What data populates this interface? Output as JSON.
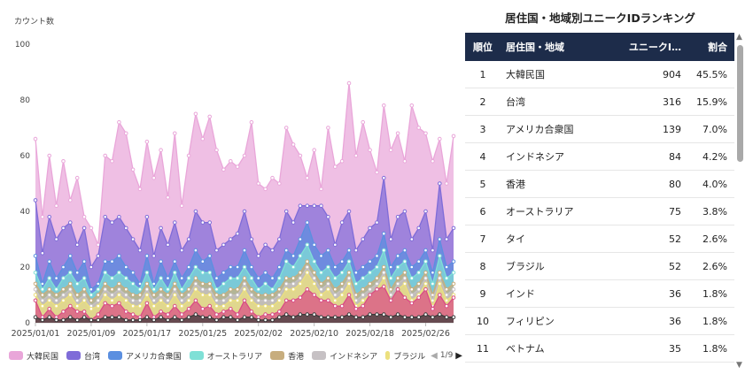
{
  "chart": {
    "y_axis_title": "カウント数",
    "legend_items": [
      {
        "label": "大韓民国",
        "color": "#e9a6d9"
      },
      {
        "label": "台湾",
        "color": "#7f6cd8"
      },
      {
        "label": "アメリカ合衆国",
        "color": "#5b8fe0"
      },
      {
        "label": "オーストラリア",
        "color": "#7fe0d6"
      },
      {
        "label": "香港",
        "color": "#c7ad7e"
      },
      {
        "label": "インドネシア",
        "color": "#c6c1c4"
      },
      {
        "label": "ブラジル",
        "color": "#ece07e"
      }
    ],
    "legend_page": "1/9"
  },
  "chart_data": {
    "type": "area",
    "stacked": false,
    "xlabel": "",
    "ylabel": "カウント数",
    "ylim": [
      0,
      100
    ],
    "yticks": [
      0,
      20,
      40,
      60,
      80,
      100
    ],
    "x_tick_labels": [
      "2025/01/01",
      "2025/01/09",
      "2025/01/17",
      "2025/01/25",
      "2025/02/02",
      "2025/02/10",
      "2025/02/18",
      "2025/02/26"
    ],
    "x_start": "2025-01-01",
    "x_end": "2025-02-28",
    "grid": false,
    "legend_position": "bottom",
    "series": [
      {
        "name": "大韓民国",
        "color": "#e9a6d9",
        "values": [
          66,
          38,
          60,
          42,
          58,
          44,
          52,
          38,
          34,
          28,
          60,
          58,
          72,
          68,
          55,
          48,
          65,
          52,
          62,
          45,
          68,
          42,
          60,
          75,
          66,
          74,
          62,
          55,
          58,
          56,
          60,
          72,
          50,
          48,
          52,
          50,
          70,
          64,
          60,
          52,
          62,
          48,
          70,
          56,
          58,
          86,
          60,
          72,
          62,
          54,
          78,
          62,
          68,
          58,
          78,
          70,
          68,
          58,
          66,
          50,
          67
        ]
      },
      {
        "name": "台湾",
        "color": "#7f6cd8",
        "values": [
          44,
          25,
          38,
          30,
          34,
          36,
          28,
          34,
          20,
          24,
          38,
          36,
          38,
          34,
          30,
          26,
          38,
          24,
          34,
          28,
          36,
          26,
          30,
          40,
          36,
          36,
          26,
          28,
          30,
          32,
          40,
          30,
          24,
          28,
          26,
          30,
          40,
          36,
          42,
          42,
          42,
          42,
          38,
          28,
          36,
          40,
          26,
          30,
          34,
          36,
          52,
          30,
          38,
          40,
          30,
          34,
          40,
          26,
          50,
          30,
          34
        ]
      },
      {
        "name": "アメリカ合衆国",
        "color": "#5b8fe0",
        "values": [
          24,
          14,
          22,
          16,
          20,
          24,
          18,
          22,
          12,
          14,
          22,
          22,
          24,
          20,
          18,
          14,
          24,
          14,
          22,
          16,
          22,
          16,
          20,
          26,
          22,
          24,
          16,
          18,
          20,
          20,
          26,
          20,
          16,
          18,
          16,
          20,
          26,
          24,
          30,
          36,
          28,
          24,
          26,
          20,
          22,
          26,
          18,
          20,
          22,
          24,
          32,
          20,
          24,
          26,
          20,
          22,
          26,
          18,
          30,
          20,
          22
        ]
      },
      {
        "name": "オーストラリア",
        "color": "#7fe0d6",
        "values": [
          18,
          12,
          16,
          12,
          16,
          18,
          14,
          16,
          10,
          12,
          18,
          16,
          18,
          16,
          14,
          12,
          18,
          12,
          16,
          12,
          18,
          12,
          16,
          20,
          18,
          18,
          12,
          14,
          16,
          16,
          20,
          16,
          12,
          14,
          12,
          16,
          22,
          20,
          24,
          28,
          22,
          18,
          20,
          16,
          18,
          22,
          14,
          16,
          18,
          20,
          26,
          16,
          20,
          22,
          16,
          18,
          22,
          14,
          24,
          16,
          18
        ]
      },
      {
        "name": "香港",
        "color": "#c7ad7e",
        "values": [
          14,
          10,
          12,
          10,
          12,
          14,
          10,
          12,
          8,
          10,
          14,
          12,
          14,
          12,
          10,
          10,
          14,
          10,
          12,
          10,
          14,
          10,
          12,
          16,
          14,
          14,
          10,
          10,
          12,
          12,
          16,
          12,
          10,
          10,
          10,
          12,
          16,
          16,
          18,
          22,
          18,
          14,
          16,
          12,
          14,
          18,
          10,
          12,
          14,
          16,
          20,
          12,
          16,
          18,
          12,
          14,
          18,
          10,
          18,
          12,
          14
        ]
      },
      {
        "name": "インドネシア",
        "color": "#c6c1c4",
        "values": [
          12,
          8,
          10,
          8,
          10,
          12,
          8,
          10,
          6,
          8,
          12,
          10,
          12,
          10,
          8,
          8,
          12,
          8,
          10,
          8,
          12,
          8,
          10,
          14,
          12,
          12,
          8,
          8,
          10,
          10,
          14,
          10,
          8,
          8,
          8,
          10,
          14,
          14,
          16,
          20,
          16,
          12,
          14,
          10,
          12,
          16,
          8,
          10,
          12,
          14,
          18,
          10,
          14,
          16,
          10,
          12,
          16,
          8,
          16,
          10,
          12
        ]
      },
      {
        "name": "ブラジル",
        "color": "#ece07e",
        "values": [
          10,
          6,
          8,
          6,
          8,
          10,
          6,
          8,
          5,
          6,
          10,
          8,
          10,
          8,
          6,
          6,
          10,
          6,
          8,
          6,
          10,
          6,
          8,
          12,
          10,
          10,
          6,
          6,
          8,
          8,
          12,
          8,
          6,
          6,
          6,
          8,
          12,
          12,
          14,
          18,
          14,
          10,
          12,
          8,
          10,
          14,
          6,
          8,
          10,
          12,
          16,
          8,
          12,
          14,
          8,
          10,
          14,
          6,
          14,
          8,
          10
        ]
      },
      {
        "name": "",
        "color": "#d94c86",
        "values": [
          8,
          2,
          5,
          2,
          4,
          6,
          4,
          4,
          1,
          3,
          7,
          6,
          7,
          4,
          3,
          2,
          7,
          2,
          4,
          3,
          6,
          3,
          5,
          8,
          5,
          6,
          3,
          4,
          5,
          3,
          8,
          4,
          2,
          3,
          3,
          4,
          8,
          8,
          9,
          12,
          10,
          8,
          8,
          6,
          6,
          10,
          5,
          6,
          10,
          12,
          13,
          8,
          12,
          9,
          7,
          9,
          12,
          5,
          10,
          6,
          9
        ]
      },
      {
        "name": "",
        "color": "#3a3a3a",
        "values": [
          2,
          1,
          2,
          1,
          1,
          2,
          1,
          2,
          1,
          1,
          2,
          2,
          2,
          1,
          1,
          1,
          2,
          1,
          2,
          1,
          2,
          1,
          2,
          3,
          2,
          2,
          1,
          2,
          2,
          1,
          2,
          2,
          1,
          1,
          1,
          2,
          3,
          2,
          3,
          3,
          3,
          2,
          2,
          2,
          2,
          3,
          2,
          2,
          3,
          3,
          3,
          2,
          3,
          2,
          2,
          2,
          3,
          2,
          3,
          2,
          2
        ]
      }
    ]
  },
  "table": {
    "title": "居住国・地域別ユニークIDランキング",
    "headers": {
      "rank": "順位",
      "country": "居住国・地域",
      "count": "ユニークI…",
      "share": "割合"
    },
    "rows": [
      {
        "rank": "1",
        "country": "大韓民国",
        "count": "904",
        "share": "45.5%"
      },
      {
        "rank": "2",
        "country": "台湾",
        "count": "316",
        "share": "15.9%"
      },
      {
        "rank": "3",
        "country": "アメリカ合衆国",
        "count": "139",
        "share": "7.0%"
      },
      {
        "rank": "4",
        "country": "インドネシア",
        "count": "84",
        "share": "4.2%"
      },
      {
        "rank": "5",
        "country": "香港",
        "count": "80",
        "share": "4.0%"
      },
      {
        "rank": "6",
        "country": "オーストラリア",
        "count": "75",
        "share": "3.8%"
      },
      {
        "rank": "7",
        "country": "タイ",
        "count": "52",
        "share": "2.6%"
      },
      {
        "rank": "8",
        "country": "ブラジル",
        "count": "52",
        "share": "2.6%"
      },
      {
        "rank": "9",
        "country": "インド",
        "count": "36",
        "share": "1.8%"
      },
      {
        "rank": "10",
        "country": "フィリピン",
        "count": "36",
        "share": "1.8%"
      },
      {
        "rank": "11",
        "country": "ベトナム",
        "count": "35",
        "share": "1.8%"
      }
    ]
  }
}
